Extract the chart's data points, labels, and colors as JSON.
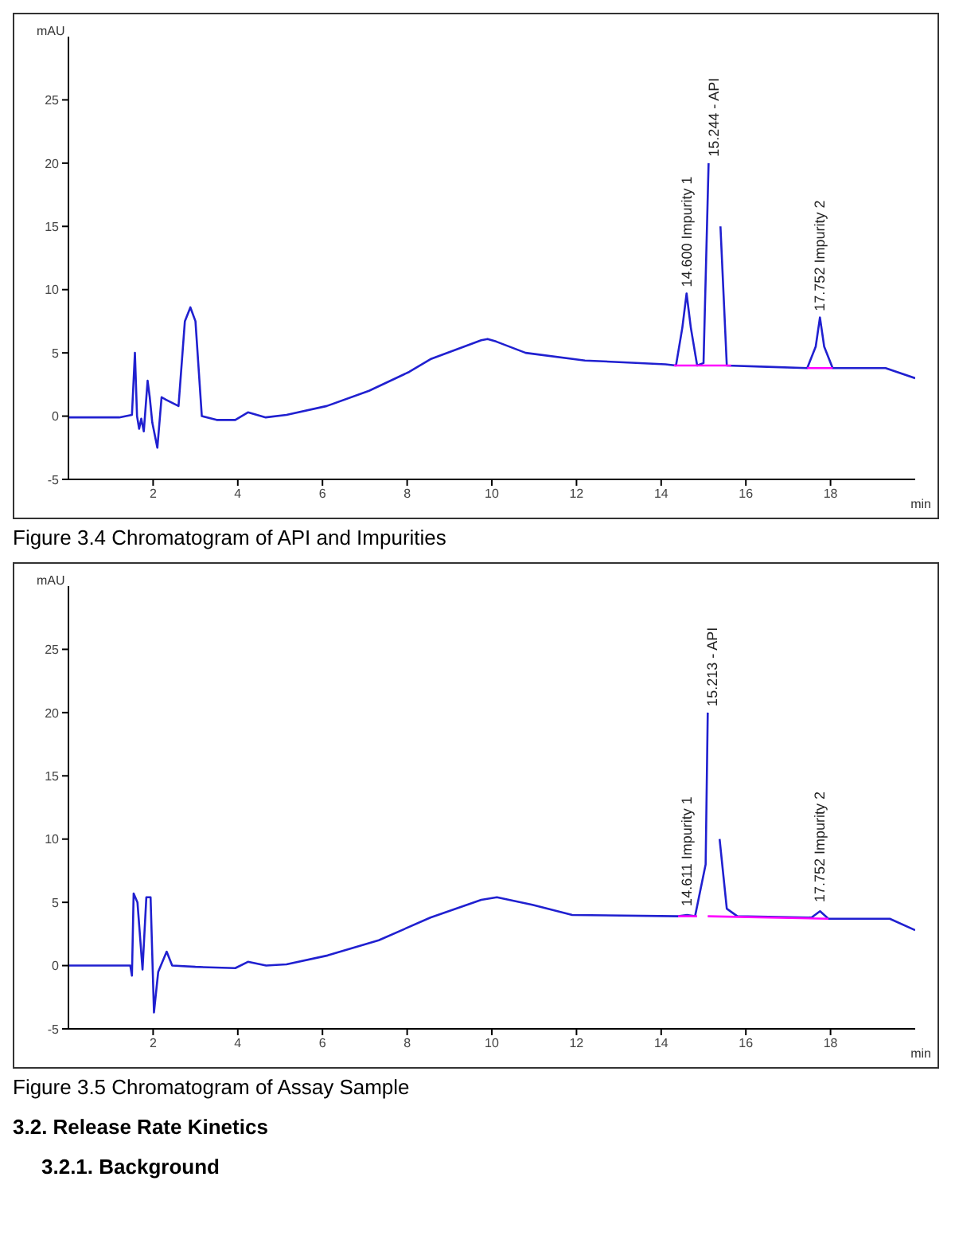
{
  "chart_data": [
    {
      "type": "line",
      "title": "Figure 3.4 Chromatogram of API and Impurities",
      "ylabel": "mAU",
      "xlabel": "min",
      "xlim": [
        0,
        20
      ],
      "ylim": [
        -5,
        30
      ],
      "xticks": [
        2,
        4,
        6,
        8,
        10,
        12,
        14,
        16,
        18
      ],
      "yticks": [
        -5,
        0,
        5,
        10,
        15,
        20,
        25
      ],
      "marker": "none",
      "line_style": "solid",
      "series": [
        {
          "color": "#2020d0",
          "x": [
            0,
            1.2,
            1.5,
            1.57,
            1.62,
            1.67,
            1.72,
            1.78,
            1.87,
            1.92,
            1.98,
            2.1,
            2.2,
            2.3,
            2.6,
            2.75,
            2.88,
            3.0,
            3.15,
            3.5,
            3.94,
            4.24,
            4.66,
            5.15,
            6.1,
            7.1,
            8.05,
            8.55,
            9.75,
            9.9,
            10.1,
            10.8,
            12.2,
            14.1,
            14.35,
            14.5,
            14.6,
            14.7,
            14.85,
            15.0,
            15.12,
            15.18,
            15.3,
            15.4,
            15.55,
            16.5,
            17.45,
            17.65,
            17.75,
            17.85,
            18.05,
            19.3,
            20
          ],
          "values": [
            -0.1,
            -0.1,
            0.1,
            5,
            0,
            -1,
            -0.2,
            -1.2,
            2.8,
            1.5,
            -0.5,
            -2.5,
            1.5,
            1.3,
            0.8,
            7.5,
            8.6,
            7.5,
            0,
            -0.3,
            -0.3,
            0.3,
            -0.1,
            0.1,
            0.8,
            2,
            3.5,
            4.5,
            6,
            6.1,
            5.9,
            5,
            4.4,
            4.1,
            4.0,
            7,
            9.7,
            7,
            4.0,
            4.2,
            20,
            null,
            null,
            15,
            4.0,
            3.9,
            3.8,
            5.5,
            7.8,
            5.5,
            3.8,
            3.8,
            3.0
          ]
        },
        {
          "color": "#ff00ff",
          "x": [
            14.3,
            15.65
          ],
          "values": [
            4.0,
            4.0
          ]
        },
        {
          "color": "#ff00ff",
          "x": [
            17.45,
            18.05
          ],
          "values": [
            3.8,
            3.8
          ]
        }
      ],
      "annotations": [
        {
          "text": "14.600 Impurity 1",
          "x": 14.6,
          "y": 9.7
        },
        {
          "text": "15.244 - API",
          "x": 15.244,
          "y": 20
        },
        {
          "text": "17.752 Impurity 2",
          "x": 17.752,
          "y": 7.8
        }
      ]
    },
    {
      "type": "line",
      "title": "Figure 3.5 Chromatogram of Assay Sample",
      "ylabel": "mAU",
      "xlabel": "min",
      "xlim": [
        0,
        20
      ],
      "ylim": [
        -5,
        30
      ],
      "xticks": [
        2,
        4,
        6,
        8,
        10,
        12,
        14,
        16,
        18
      ],
      "yticks": [
        -5,
        0,
        5,
        10,
        15,
        20,
        25
      ],
      "marker": "none",
      "line_style": "solid",
      "series": [
        {
          "color": "#2020d0",
          "x": [
            0,
            1.46,
            1.5,
            1.54,
            1.63,
            1.75,
            1.84,
            1.94,
            2.02,
            2.12,
            2.32,
            2.45,
            3.0,
            3.94,
            4.24,
            4.67,
            5.15,
            6.12,
            7.33,
            8.55,
            9.75,
            10.12,
            10.96,
            11.9,
            14.4,
            14.611,
            14.8,
            15.05,
            15.1,
            15.13,
            15.3,
            15.38,
            15.55,
            15.8,
            17.55,
            17.752,
            17.95,
            19.4,
            20
          ],
          "values": [
            0,
            0,
            -0.8,
            5.7,
            5,
            -0.3,
            5.4,
            5.4,
            -3.7,
            -0.5,
            1.1,
            0,
            -0.1,
            -0.2,
            0.3,
            0,
            0.1,
            0.8,
            2.0,
            3.8,
            5.2,
            5.4,
            4.8,
            4.0,
            3.9,
            4.0,
            3.9,
            8,
            20,
            null,
            null,
            10,
            4.5,
            3.9,
            3.8,
            4.3,
            3.7,
            3.7,
            2.8
          ]
        },
        {
          "color": "#ff00ff",
          "x": [
            14.4,
            14.85
          ],
          "values": [
            3.9,
            3.9
          ]
        },
        {
          "color": "#ff00ff",
          "x": [
            15.1,
            17.95
          ],
          "values": [
            3.9,
            3.7
          ]
        }
      ],
      "annotations": [
        {
          "text": "14.611 Impurity 1",
          "x": 14.611,
          "y": 4.2
        },
        {
          "text": "15.213 - API",
          "x": 15.213,
          "y": 20
        },
        {
          "text": "17.752 Impurity 2",
          "x": 17.752,
          "y": 4.5
        },
        "3.2.    Release Rate Kinetics",
        "3.2.1.    Background"
      ]
    }
  ]
}
